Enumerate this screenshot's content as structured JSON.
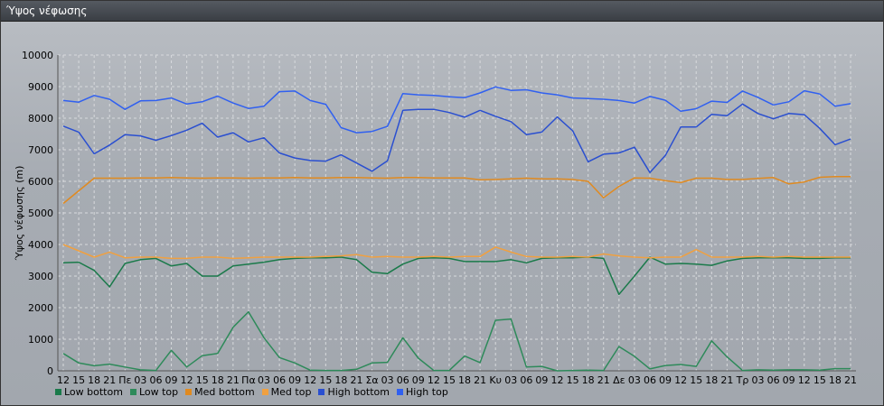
{
  "window": {
    "title": "Ύψος νέφωσης"
  },
  "chart_data": {
    "type": "line",
    "title": "",
    "xlabel": "",
    "ylabel": "Ύψος νέφωσης (m)",
    "ylim": [
      0,
      10000
    ],
    "yticks": [
      0,
      1000,
      2000,
      3000,
      4000,
      5000,
      6000,
      7000,
      8000,
      9000,
      10000
    ],
    "grid": true,
    "legend_position": "bottom-left",
    "x": [
      "12",
      "15",
      "18",
      "21",
      "Πε",
      "03",
      "06",
      "09",
      "12",
      "15",
      "18",
      "21",
      "Πα",
      "03",
      "06",
      "09",
      "12",
      "15",
      "18",
      "21",
      "Σα",
      "03",
      "06",
      "09",
      "12",
      "15",
      "18",
      "21",
      "Κυ",
      "03",
      "06",
      "09",
      "12",
      "15",
      "18",
      "21",
      "Δε",
      "03",
      "06",
      "09",
      "12",
      "15",
      "18",
      "21",
      "Τρ",
      "03",
      "06",
      "09",
      "12",
      "15",
      "18",
      "21"
    ],
    "series": [
      {
        "name": "Low bottom",
        "color": "#1a7a4a",
        "values": [
          3420,
          3440,
          3180,
          2660,
          3400,
          3520,
          3560,
          3320,
          3400,
          3000,
          3000,
          3320,
          3380,
          3440,
          3520,
          3560,
          3580,
          3580,
          3600,
          3520,
          3120,
          3080,
          3380,
          3560,
          3580,
          3560,
          3460,
          3460,
          3460,
          3520,
          3420,
          3560,
          3580,
          3580,
          3600,
          3560,
          2420,
          3000,
          3600,
          3380,
          3400,
          3380,
          3340,
          3480,
          3560,
          3580,
          3580,
          3580,
          3560,
          3560,
          3580,
          3580
        ]
      },
      {
        "name": "Low top",
        "color": "#2e8a5a",
        "values": [
          550,
          250,
          160,
          210,
          120,
          30,
          10,
          650,
          120,
          480,
          550,
          1380,
          1870,
          1050,
          420,
          250,
          20,
          10,
          10,
          50,
          250,
          270,
          1050,
          400,
          10,
          10,
          470,
          260,
          1600,
          1640,
          120,
          140,
          0,
          10,
          20,
          10,
          770,
          460,
          60,
          170,
          200,
          140,
          950,
          440,
          10,
          30,
          20,
          30,
          30,
          20,
          70,
          70
        ]
      },
      {
        "name": "Med bottom",
        "color": "#e08a20",
        "values": [
          5300,
          5700,
          6100,
          6100,
          6100,
          6110,
          6110,
          6120,
          6110,
          6100,
          6110,
          6110,
          6100,
          6110,
          6110,
          6120,
          6110,
          6110,
          6120,
          6120,
          6110,
          6100,
          6120,
          6120,
          6110,
          6110,
          6110,
          6050,
          6060,
          6080,
          6100,
          6080,
          6080,
          6060,
          6000,
          5480,
          5840,
          6110,
          6100,
          6020,
          5960,
          6100,
          6100,
          6060,
          6060,
          6090,
          6120,
          5920,
          5980,
          6130,
          6150,
          6150
        ]
      },
      {
        "name": "Med top",
        "color": "#f0a040",
        "values": [
          4000,
          3800,
          3600,
          3760,
          3580,
          3600,
          3600,
          3560,
          3560,
          3600,
          3600,
          3560,
          3580,
          3600,
          3600,
          3600,
          3600,
          3620,
          3640,
          3680,
          3600,
          3620,
          3600,
          3600,
          3620,
          3600,
          3620,
          3620,
          3920,
          3760,
          3620,
          3600,
          3600,
          3620,
          3600,
          3700,
          3640,
          3600,
          3580,
          3600,
          3600,
          3840,
          3600,
          3600,
          3600,
          3620,
          3600,
          3620,
          3600,
          3600,
          3600,
          3600
        ]
      },
      {
        "name": "High bottom",
        "color": "#2a4fd0",
        "values": [
          7750,
          7560,
          6870,
          7150,
          7480,
          7440,
          7300,
          7450,
          7620,
          7840,
          7400,
          7540,
          7250,
          7380,
          6900,
          6740,
          6660,
          6640,
          6840,
          6580,
          6320,
          6650,
          8250,
          8280,
          8280,
          8180,
          8030,
          8250,
          8060,
          7890,
          7480,
          7560,
          8040,
          7600,
          6620,
          6860,
          6900,
          7080,
          6280,
          6820,
          7720,
          7720,
          8120,
          8080,
          8450,
          8150,
          7980,
          8150,
          8110,
          7680,
          7160,
          7340
        ]
      },
      {
        "name": "High top",
        "color": "#3060f0",
        "values": [
          8560,
          8510,
          8720,
          8600,
          8280,
          8550,
          8560,
          8640,
          8450,
          8520,
          8700,
          8480,
          8310,
          8380,
          8840,
          8860,
          8560,
          8440,
          7700,
          7540,
          7580,
          7740,
          8780,
          8740,
          8720,
          8680,
          8650,
          8800,
          8990,
          8880,
          8900,
          8800,
          8740,
          8640,
          8620,
          8600,
          8560,
          8480,
          8690,
          8570,
          8220,
          8300,
          8540,
          8500,
          8860,
          8660,
          8420,
          8520,
          8870,
          8770,
          8380,
          8460
        ]
      }
    ]
  }
}
